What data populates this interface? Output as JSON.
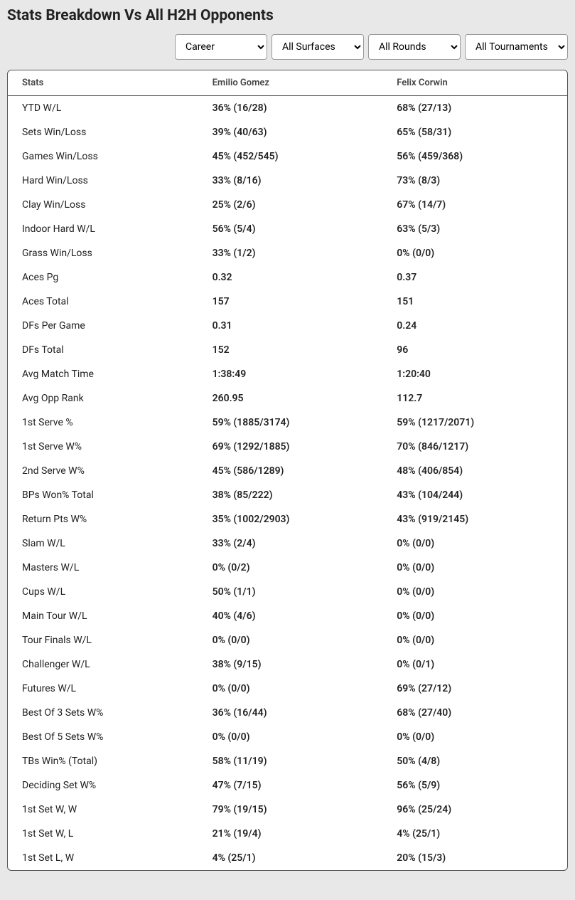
{
  "title": "Stats Breakdown Vs All H2H Opponents",
  "filters": {
    "period": {
      "selected": "Career",
      "options": [
        "Career"
      ]
    },
    "surface": {
      "selected": "All Surfaces",
      "options": [
        "All Surfaces"
      ]
    },
    "round": {
      "selected": "All Rounds",
      "options": [
        "All Rounds"
      ]
    },
    "tournament": {
      "selected": "All Tournaments",
      "options": [
        "All Tournaments"
      ]
    }
  },
  "table": {
    "headers": [
      "Stats",
      "Emilio Gomez",
      "Felix Corwin"
    ],
    "rows": [
      {
        "stat": "YTD W/L",
        "p1": "36% (16/28)",
        "p2": "68% (27/13)"
      },
      {
        "stat": "Sets Win/Loss",
        "p1": "39% (40/63)",
        "p2": "65% (58/31)"
      },
      {
        "stat": "Games Win/Loss",
        "p1": "45% (452/545)",
        "p2": "56% (459/368)"
      },
      {
        "stat": "Hard Win/Loss",
        "p1": "33% (8/16)",
        "p2": "73% (8/3)"
      },
      {
        "stat": "Clay Win/Loss",
        "p1": "25% (2/6)",
        "p2": "67% (14/7)"
      },
      {
        "stat": "Indoor Hard W/L",
        "p1": "56% (5/4)",
        "p2": "63% (5/3)"
      },
      {
        "stat": "Grass Win/Loss",
        "p1": "33% (1/2)",
        "p2": "0% (0/0)"
      },
      {
        "stat": "Aces Pg",
        "p1": "0.32",
        "p2": "0.37"
      },
      {
        "stat": "Aces Total",
        "p1": "157",
        "p2": "151"
      },
      {
        "stat": "DFs Per Game",
        "p1": "0.31",
        "p2": "0.24"
      },
      {
        "stat": "DFs Total",
        "p1": "152",
        "p2": "96"
      },
      {
        "stat": "Avg Match Time",
        "p1": "1:38:49",
        "p2": "1:20:40"
      },
      {
        "stat": "Avg Opp Rank",
        "p1": "260.95",
        "p2": "112.7"
      },
      {
        "stat": "1st Serve %",
        "p1": "59% (1885/3174)",
        "p2": "59% (1217/2071)"
      },
      {
        "stat": "1st Serve W%",
        "p1": "69% (1292/1885)",
        "p2": "70% (846/1217)"
      },
      {
        "stat": "2nd Serve W%",
        "p1": "45% (586/1289)",
        "p2": "48% (406/854)"
      },
      {
        "stat": "BPs Won% Total",
        "p1": "38% (85/222)",
        "p2": "43% (104/244)"
      },
      {
        "stat": "Return Pts W%",
        "p1": "35% (1002/2903)",
        "p2": "43% (919/2145)"
      },
      {
        "stat": "Slam W/L",
        "p1": "33% (2/4)",
        "p2": "0% (0/0)"
      },
      {
        "stat": "Masters W/L",
        "p1": "0% (0/2)",
        "p2": "0% (0/0)"
      },
      {
        "stat": "Cups W/L",
        "p1": "50% (1/1)",
        "p2": "0% (0/0)"
      },
      {
        "stat": "Main Tour W/L",
        "p1": "40% (4/6)",
        "p2": "0% (0/0)"
      },
      {
        "stat": "Tour Finals W/L",
        "p1": "0% (0/0)",
        "p2": "0% (0/0)"
      },
      {
        "stat": "Challenger W/L",
        "p1": "38% (9/15)",
        "p2": "0% (0/1)"
      },
      {
        "stat": "Futures W/L",
        "p1": "0% (0/0)",
        "p2": "69% (27/12)"
      },
      {
        "stat": "Best Of 3 Sets W%",
        "p1": "36% (16/44)",
        "p2": "68% (27/40)"
      },
      {
        "stat": "Best Of 5 Sets W%",
        "p1": "0% (0/0)",
        "p2": "0% (0/0)"
      },
      {
        "stat": "TBs Win% (Total)",
        "p1": "58% (11/19)",
        "p2": "50% (4/8)"
      },
      {
        "stat": "Deciding Set W%",
        "p1": "47% (7/15)",
        "p2": "56% (5/9)"
      },
      {
        "stat": "1st Set W, W",
        "p1": "79% (19/15)",
        "p2": "96% (25/24)"
      },
      {
        "stat": "1st Set W, L",
        "p1": "21% (19/4)",
        "p2": "4% (25/1)"
      },
      {
        "stat": "1st Set L, W",
        "p1": "4% (25/1)",
        "p2": "20% (15/3)"
      }
    ]
  }
}
